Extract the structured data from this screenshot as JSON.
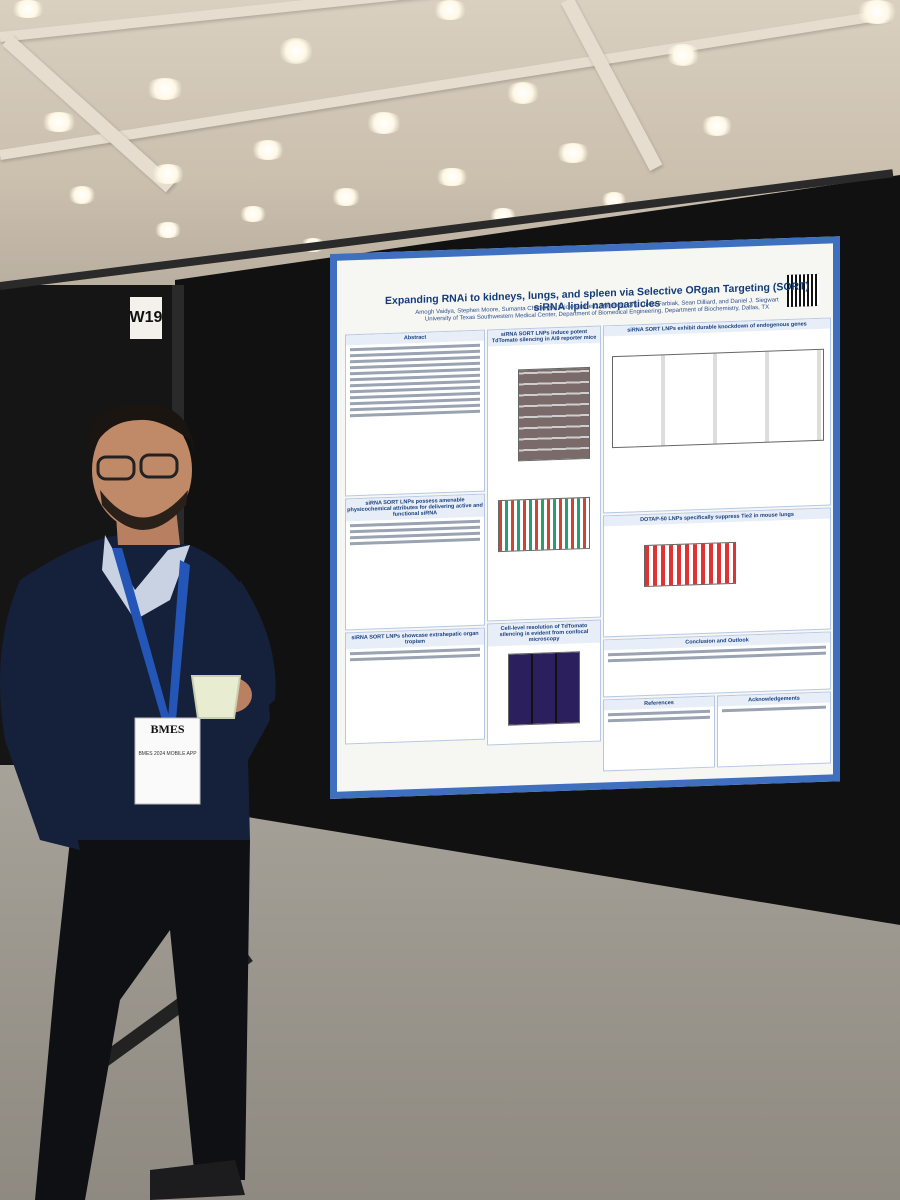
{
  "scene": {
    "booth_number": "W19"
  },
  "poster": {
    "title": "Expanding RNAi to kidneys, lungs, and spleen via Selective ORgan Targeting (SORT) siRNA lipid nanoparticles",
    "authors": "Amogh Vaidya, Stephen Moore, Sumanta Chatterjee, Erick Guerrero, Minjeong Kim, Lukas Farbiak, Sean Dilliard, and Daniel J. Siegwart",
    "affiliation": "University of Texas Southwestern Medical Center, Department of Biomedical Engineering, Department of Biochemistry, Dallas, TX",
    "sections": [
      "Abstract",
      "siRNA SORT LNPs induce potent TdTomato silencing in Ai9 reporter mice",
      "siRNA SORT LNPs exhibit durable knockdown of endogenous genes",
      "siRNA SORT LNPs possess amenable physicochemical attributes for delivering active and functional siRNA",
      "DOTAP-50 LNPs specifically suppress Tie2 in mouse lungs",
      "Cell-level resolution of TdTomato silencing is evident from confocal microscopy",
      "siRNA SORT LNPs showcase extrahepatic organ tropism",
      "Conclusion and Outlook",
      "References",
      "Acknowledgements"
    ]
  },
  "badge": {
    "org": "BMES",
    "line2": "BMES 2024 MOBILE APP"
  },
  "colors": {
    "poster_border": "#3f6fbf",
    "lanyard": "#2456b8",
    "sweater": "#15213a",
    "board": "#141414"
  }
}
